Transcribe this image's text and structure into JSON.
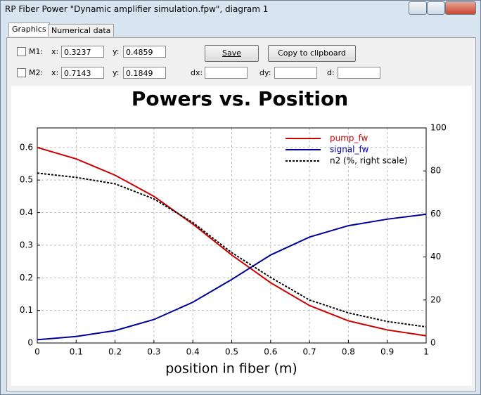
{
  "window": {
    "title": "RP Fiber Power \"Dynamic amplifier simulation.fpw\", diagram 1"
  },
  "tabs": [
    "Graphics",
    "Numerical data"
  ],
  "markers": [
    {
      "label": "M1:",
      "x_label": "x:",
      "x_value": "0.3237",
      "y_label": "y:",
      "y_value": "0.4859"
    },
    {
      "label": "M2:",
      "x_label": "x:",
      "x_value": "0.7143",
      "y_label": "y:",
      "y_value": "0.1849"
    }
  ],
  "buttons": [
    "Save",
    "Copy to clipboard"
  ],
  "deltas": [
    "dx:",
    "dy:",
    "d:"
  ],
  "chart_data": {
    "type": "line",
    "title": "Powers vs. Position",
    "x_label": "position in fiber (m)",
    "x": [
      0,
      0.1,
      0.2,
      0.3,
      0.4,
      0.5,
      0.6,
      0.7,
      0.8,
      0.9,
      1
    ],
    "series": [
      {
        "name": "pump_fw",
        "color": "#cc0000",
        "values": [
          0.6,
          0.565,
          0.515,
          0.45,
          0.365,
          0.27,
          0.185,
          0.115,
          0.068,
          0.04,
          0.022
        ]
      },
      {
        "name": "signal_fw",
        "color": "#00009c",
        "values": [
          0.01,
          0.02,
          0.038,
          0.072,
          0.125,
          0.195,
          0.27,
          0.325,
          0.36,
          0.38,
          0.395
        ]
      },
      {
        "name": "n2 (%, right scale)",
        "color": "#000000",
        "axis": "y2",
        "dashed": true,
        "values": [
          79,
          77,
          74,
          67,
          56,
          42,
          30.5,
          20,
          14,
          10,
          7.5
        ]
      }
    ],
    "xlim": [
      0,
      1
    ],
    "xticks": [
      0,
      0.1,
      0.2,
      0.3,
      0.4,
      0.5,
      0.6,
      0.7,
      0.8,
      0.9,
      1
    ],
    "ylim": [
      0,
      0.66
    ],
    "yticks": [
      0,
      0.1,
      0.2,
      0.3,
      0.4,
      0.5,
      0.6
    ],
    "y2lim": [
      0,
      100
    ],
    "y2ticks": [
      0,
      20,
      40,
      60,
      80,
      100
    ],
    "grid": true,
    "legend": "top-right"
  }
}
